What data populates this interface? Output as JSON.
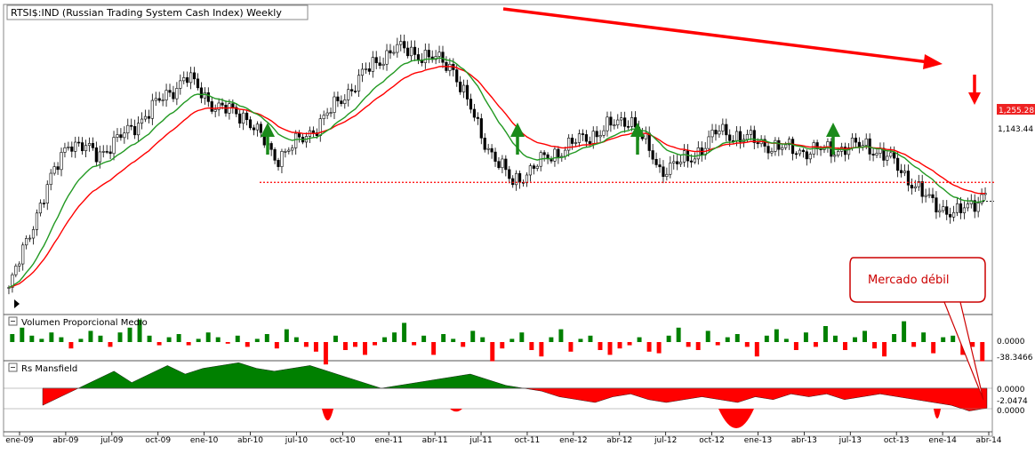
{
  "title": "RTSI$:IND (Russian Trading System Cash Index) Weekly",
  "callout": "Mercado débil",
  "price_labels": [
    "1,255.28",
    "1,143.44"
  ],
  "colors": {
    "up": "#008000",
    "down": "#ff0000",
    "ma_slow": "#ff0000",
    "ma_fast": "#229922",
    "support": "#ff0000",
    "trend_arrow": "#ff0000",
    "up_arrows": "#1a8a1a",
    "callout": "#cc0000"
  },
  "chart_data": {
    "type": "line",
    "x_ticks": [
      "ene-09",
      "abr-09",
      "jul-09",
      "oct-09",
      "ene-10",
      "abr-10",
      "jul-10",
      "oct-10",
      "ene-11",
      "abr-11",
      "jul-11",
      "oct-11",
      "ene-12",
      "abr-12",
      "jul-12",
      "oct-12",
      "ene-13",
      "abr-13",
      "jul-13",
      "oct-13",
      "ene-14",
      "abr-14"
    ],
    "price_axis": [
      1255.28,
      1143.44
    ],
    "close": [
      620,
      1100,
      1500,
      1420,
      1550,
      1720,
      1880,
      1700,
      1650,
      1400,
      1520,
      1700,
      1900,
      2050,
      2010,
      1940,
      1520,
      1250,
      1380,
      1480,
      1560,
      1640,
      1330,
      1390,
      1560,
      1510,
      1460,
      1440,
      1450,
      1480,
      1360,
      1160,
      1060,
      1190
    ],
    "annotations": {
      "support_level": 1255.28,
      "last_price": 1143.44,
      "support_touches": 4,
      "downtrend_arrow": true
    },
    "panels": [
      {
        "name": "Volumen Proporcional Medio",
        "labels": [
          "0.0000",
          "-38.3466"
        ],
        "values": [
          5,
          9,
          4,
          2,
          6,
          3,
          -4,
          2,
          7,
          4,
          -3,
          6,
          9,
          14,
          4,
          -2,
          3,
          5,
          -2,
          2,
          6,
          3,
          -1,
          4,
          -3,
          2,
          5,
          -4,
          8,
          3,
          -3,
          -6,
          -14,
          4,
          -5,
          -3,
          -8,
          -2,
          3,
          6,
          12,
          -2,
          4,
          -8,
          5,
          2,
          -3,
          7,
          3,
          -12,
          -4,
          2,
          6,
          -5,
          -9,
          3,
          8,
          -6,
          2,
          4,
          -5,
          -8,
          -4,
          -2,
          3,
          -6,
          -7,
          4,
          9,
          -3,
          -5,
          7,
          -2,
          3,
          5,
          -3,
          -9,
          4,
          8,
          2,
          -5,
          6,
          -3,
          10,
          4,
          -5,
          3,
          7,
          -4,
          -9,
          5,
          13,
          -3,
          6,
          -7,
          3,
          4,
          -8,
          -3,
          -12
        ]
      },
      {
        "name": "Rs Mansfield",
        "labels": [
          "0.0000",
          "-2.0474",
          "0.0000"
        ],
        "values": [
          -6,
          -3,
          0,
          3,
          6,
          2,
          5,
          8,
          5,
          7,
          8,
          9,
          7,
          6,
          7,
          8,
          6,
          4,
          2,
          0,
          1,
          2,
          3,
          4,
          5,
          3,
          1,
          0,
          -1,
          -3,
          -4,
          -5,
          -3,
          -2,
          -4,
          -5,
          -4,
          -3,
          -4,
          -5,
          -3,
          -4,
          -2,
          -3,
          -2,
          -4,
          -3,
          -2,
          -3,
          -4,
          -5,
          -6,
          -8,
          -7
        ]
      }
    ]
  }
}
